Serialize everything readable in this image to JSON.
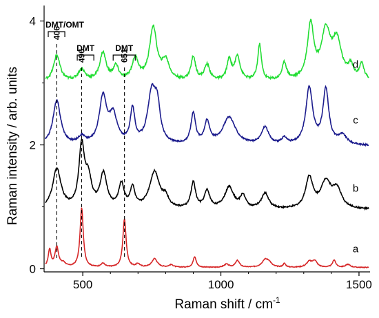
{
  "chart_data": {
    "type": "line",
    "xlabel": "Raman shift / cm",
    "xlabel_sup": "-1",
    "ylabel": "Raman intensity / arb. units",
    "xlim": [
      360,
      1540
    ],
    "ylim": [
      -0.05,
      4.25
    ],
    "x_ticks": [
      500,
      1000,
      1500
    ],
    "x_tick_labels": [
      "500",
      "1000",
      "1500"
    ],
    "y_ticks": [
      0,
      2,
      4
    ],
    "y_tick_labels": [
      "0",
      "2",
      "4"
    ],
    "grid": false,
    "legend": "none",
    "series": [
      {
        "name": "a",
        "color": "#d62728",
        "baseline": 0.02,
        "noise": 0.006,
        "peaks": [
          [
            380,
            0.28,
            6
          ],
          [
            406,
            0.32,
            8
          ],
          [
            430,
            0.06,
            10
          ],
          [
            496,
            0.96,
            7
          ],
          [
            573,
            0.06,
            8
          ],
          [
            651,
            0.78,
            7
          ],
          [
            700,
            0.05,
            8
          ],
          [
            760,
            0.14,
            12
          ],
          [
            820,
            0.04,
            10
          ],
          [
            905,
            0.17,
            7
          ],
          [
            1020,
            0.05,
            10
          ],
          [
            1060,
            0.11,
            9
          ],
          [
            1160,
            0.12,
            14
          ],
          [
            1175,
            0.06,
            10
          ],
          [
            1230,
            0.06,
            6
          ],
          [
            1320,
            0.09,
            12
          ],
          [
            1340,
            0.1,
            10
          ],
          [
            1410,
            0.12,
            7
          ],
          [
            1460,
            0.05,
            10
          ]
        ]
      },
      {
        "name": "b",
        "color": "#000000",
        "baseline": 0.95,
        "noise": 0.012,
        "peaks": [
          [
            406,
            0.65,
            18
          ],
          [
            496,
            0.98,
            12
          ],
          [
            520,
            0.45,
            14
          ],
          [
            575,
            0.55,
            15
          ],
          [
            640,
            0.38,
            12
          ],
          [
            680,
            0.32,
            10
          ],
          [
            760,
            0.6,
            22
          ],
          [
            800,
            0.15,
            12
          ],
          [
            900,
            0.42,
            10
          ],
          [
            950,
            0.28,
            12
          ],
          [
            1030,
            0.35,
            20
          ],
          [
            1080,
            0.2,
            12
          ],
          [
            1160,
            0.25,
            16
          ],
          [
            1320,
            0.5,
            16
          ],
          [
            1380,
            0.42,
            22
          ],
          [
            1420,
            0.3,
            20
          ]
        ]
      },
      {
        "name": "c",
        "color": "#1a1a8c",
        "baseline": 1.98,
        "noise": 0.012,
        "peaks": [
          [
            406,
            0.72,
            17
          ],
          [
            496,
            0.12,
            15
          ],
          [
            573,
            0.75,
            16
          ],
          [
            610,
            0.45,
            18
          ],
          [
            680,
            0.55,
            10
          ],
          [
            750,
            0.82,
            18
          ],
          [
            770,
            0.5,
            12
          ],
          [
            900,
            0.5,
            10
          ],
          [
            950,
            0.35,
            12
          ],
          [
            1030,
            0.45,
            28
          ],
          [
            1160,
            0.28,
            16
          ],
          [
            1230,
            0.1,
            12
          ],
          [
            1320,
            0.92,
            15
          ],
          [
            1380,
            0.88,
            13
          ],
          [
            1440,
            0.15,
            20
          ]
        ]
      },
      {
        "name": "d",
        "color": "#22dd33",
        "baseline": 3.02,
        "noise": 0.018,
        "peaks": [
          [
            406,
            0.42,
            14
          ],
          [
            496,
            0.18,
            15
          ],
          [
            573,
            0.45,
            14
          ],
          [
            620,
            0.22,
            12
          ],
          [
            690,
            0.35,
            14
          ],
          [
            755,
            0.85,
            16
          ],
          [
            800,
            0.3,
            16
          ],
          [
            900,
            0.38,
            10
          ],
          [
            950,
            0.25,
            12
          ],
          [
            1030,
            0.32,
            10
          ],
          [
            1060,
            0.38,
            12
          ],
          [
            1140,
            0.58,
            8
          ],
          [
            1230,
            0.28,
            10
          ],
          [
            1325,
            0.88,
            14
          ],
          [
            1380,
            0.75,
            20
          ],
          [
            1420,
            0.6,
            20
          ],
          [
            1470,
            0.2,
            12
          ],
          [
            1510,
            0.25,
            10
          ]
        ]
      }
    ],
    "annotations": [
      {
        "x": 406,
        "label": "406",
        "bracket": "DMT/OMT",
        "bracket_range": [
          375,
          435
        ]
      },
      {
        "x": 496,
        "label": "496",
        "bracket": "DMT",
        "bracket_range": [
          480,
          540
        ]
      },
      {
        "x": 651,
        "label": "651",
        "bracket": "DMT",
        "bracket_range": [
          610,
          690
        ]
      }
    ]
  }
}
